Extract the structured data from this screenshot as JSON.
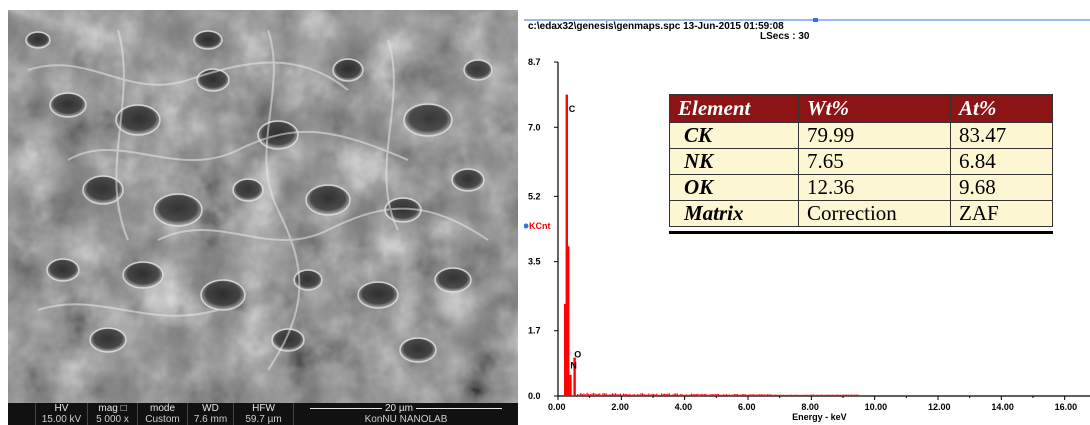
{
  "sem": {
    "labels": {
      "hv": "HV",
      "mag": "mag",
      "mode": "mode",
      "wd": "WD",
      "hfw": "HFW"
    },
    "values": {
      "hv": "15.00 kV",
      "mag": "5 000 x",
      "mode": "Custom",
      "wd": "7.6 mm",
      "hfw": "59.7 µm"
    },
    "scale_bar": "20 µm",
    "lab": "KonNU NANOLAB"
  },
  "eds": {
    "header": "c:\\edax32\\genesis\\genmaps.spc  13-Jun-2015 01:59:08",
    "lsecs": "LSecs :  30",
    "y_axis_label": "KCnt",
    "x_axis_label": "Energy - keV",
    "y_ticks": [
      "8.7",
      "7.0",
      "5.2",
      "3.5",
      "1.7",
      "0.0"
    ],
    "x_ticks": [
      "0.00",
      "2.00",
      "4.00",
      "6.00",
      "8.00",
      "10.00",
      "12.00",
      "14.00",
      "16.00"
    ],
    "peak_labels": {
      "c": "C",
      "o": "O",
      "n": "N"
    },
    "colors": {
      "spectrum": "#ff0000",
      "table_header": "#8c1414",
      "table_body": "#fdf6d3",
      "axis_label": "#ff0000"
    },
    "table": {
      "headers": [
        "Element",
        "Wt%",
        "At%"
      ],
      "rows": [
        [
          "CK",
          "79.99",
          "83.47"
        ],
        [
          "NK",
          "7.65",
          "6.84"
        ],
        [
          "OK",
          "12.36",
          "9.68"
        ],
        [
          "Matrix",
          "Correction",
          "ZAF"
        ]
      ]
    }
  },
  "chart_data": {
    "type": "bar",
    "title": "",
    "xlabel": "Energy - keV",
    "ylabel": "KCnt",
    "xlim": [
      0,
      16.8
    ],
    "ylim": [
      0,
      8.7
    ],
    "peaks": [
      {
        "label": "C",
        "x": 0.277,
        "y": 7.85
      },
      {
        "label": "N",
        "x": 0.392,
        "y": 0.55
      },
      {
        "label": "O",
        "x": 0.525,
        "y": 1.0
      }
    ]
  }
}
